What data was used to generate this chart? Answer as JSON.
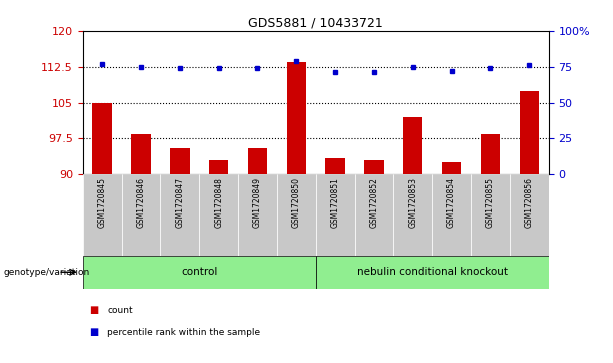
{
  "title": "GDS5881 / 10433721",
  "samples": [
    "GSM1720845",
    "GSM1720846",
    "GSM1720847",
    "GSM1720848",
    "GSM1720849",
    "GSM1720850",
    "GSM1720851",
    "GSM1720852",
    "GSM1720853",
    "GSM1720854",
    "GSM1720855",
    "GSM1720856"
  ],
  "counts": [
    105.0,
    98.5,
    95.5,
    93.0,
    95.5,
    113.5,
    93.5,
    93.0,
    102.0,
    92.5,
    98.5,
    107.5
  ],
  "percentile_ranks": [
    77,
    75,
    74,
    74,
    74,
    79,
    71,
    71,
    75,
    72,
    74,
    76
  ],
  "ylim_left": [
    90,
    120
  ],
  "ylim_right": [
    0,
    100
  ],
  "yticks_left": [
    90,
    97.5,
    105,
    112.5,
    120
  ],
  "yticks_right": [
    0,
    25,
    50,
    75,
    100
  ],
  "bar_color": "#cc0000",
  "dot_color": "#0000cc",
  "hline_y_left": [
    97.5,
    105,
    112.5
  ],
  "n_control": 6,
  "n_knockout": 6,
  "group_label_control": "control",
  "group_label_knockout": "nebulin conditional knockout",
  "row_label": "genotype/variation",
  "legend_count": "count",
  "legend_percentile": "percentile rank within the sample",
  "bar_width": 0.5,
  "green_color": "#90ee90",
  "gray_color": "#c8c8c8"
}
